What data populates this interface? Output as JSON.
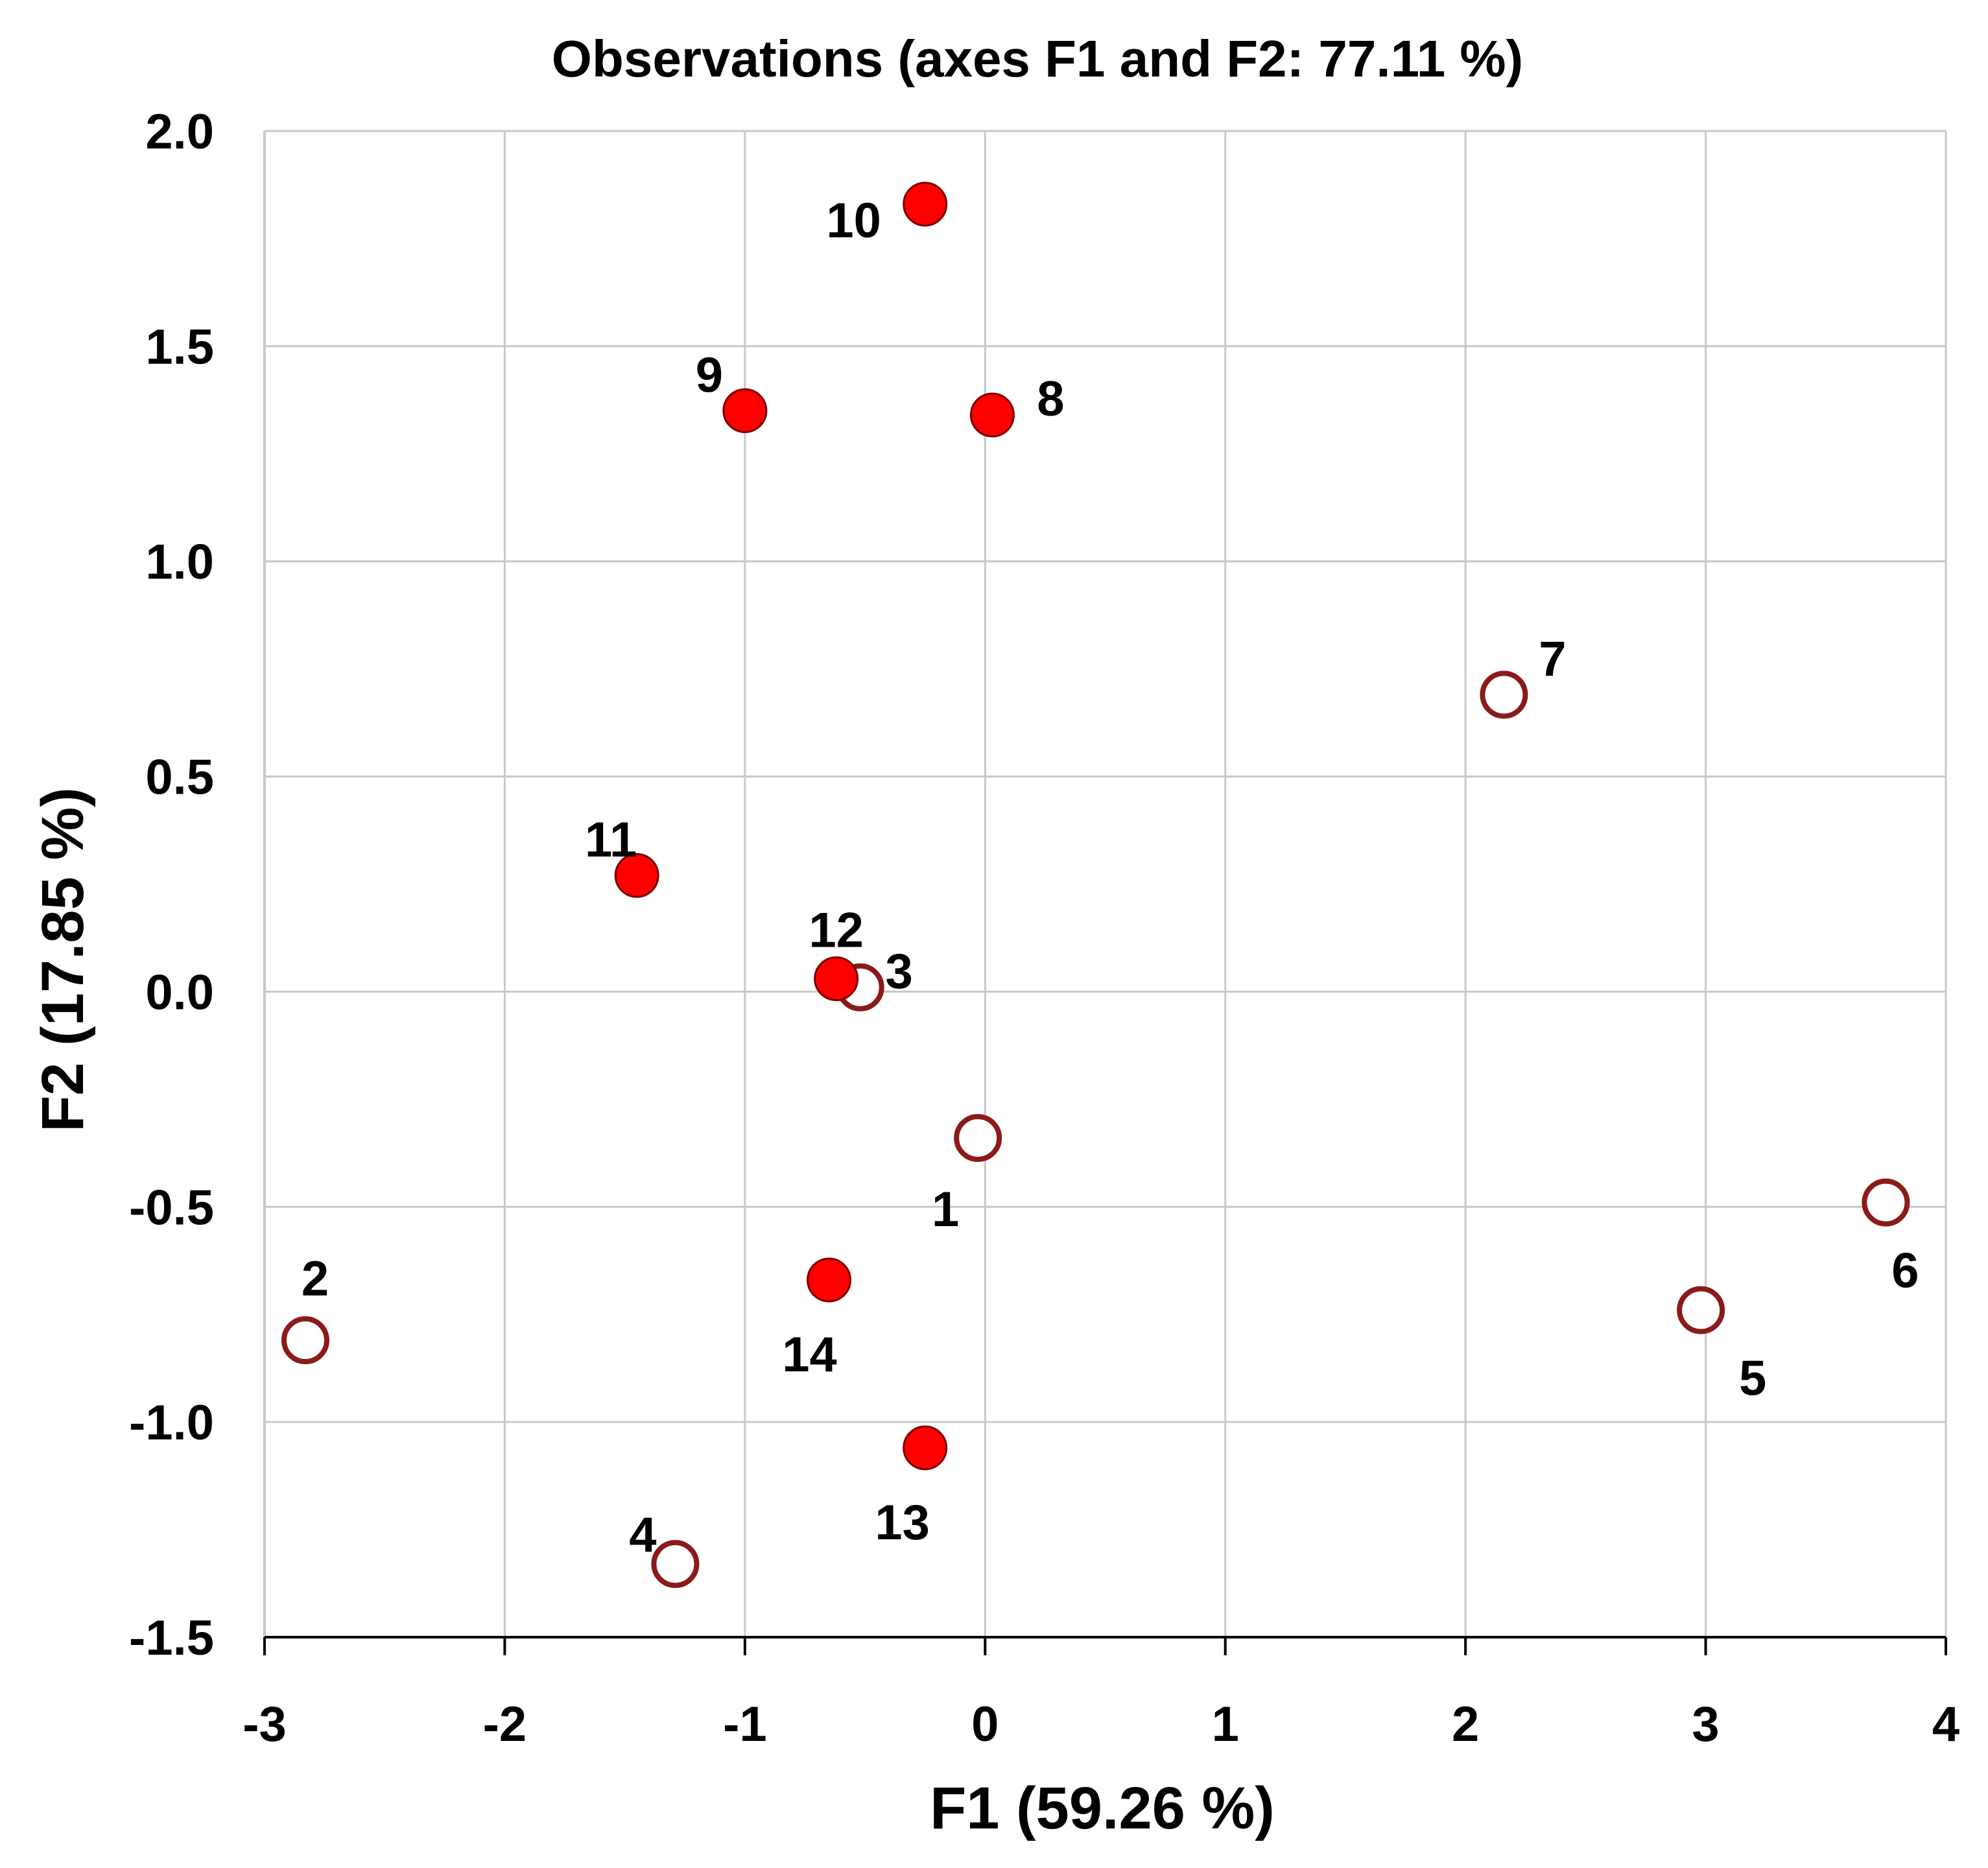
{
  "chart_data": {
    "type": "scatter",
    "title": "Observations (axes F1 and F2: 77.11 %)",
    "xlabel": "F1 (59.26 %)",
    "ylabel": "F2 (17.85 %)",
    "xlim": [
      -3,
      4
    ],
    "ylim": [
      -1.5,
      2.0
    ],
    "xticks": [
      "-3",
      "-2",
      "-1",
      "0",
      "1",
      "2",
      "3",
      "4"
    ],
    "yticks": [
      "-1.5",
      "-1.0",
      "-0.5",
      "0.0",
      "0.5",
      "1.0",
      "1.5",
      "2.0"
    ],
    "grid": true,
    "colors": {
      "filled": "#ff0000",
      "outline": "#8b1a1a",
      "grid": "#c8c8c8"
    },
    "series": [
      {
        "marker": "open-circle",
        "points": [
          {
            "label": "1",
            "x": -0.03,
            "y": -0.34
          },
          {
            "label": "2",
            "x": -2.83,
            "y": -0.81
          },
          {
            "label": "3",
            "x": -0.52,
            "y": 0.01
          },
          {
            "label": "4",
            "x": -1.29,
            "y": -1.33
          },
          {
            "label": "5",
            "x": 2.98,
            "y": -0.74
          },
          {
            "label": "6",
            "x": 3.75,
            "y": -0.49
          },
          {
            "label": "7",
            "x": 2.16,
            "y": 0.69
          }
        ]
      },
      {
        "marker": "filled-circle",
        "points": [
          {
            "label": "8",
            "x": 0.03,
            "y": 1.34
          },
          {
            "label": "9",
            "x": -1.0,
            "y": 1.35
          },
          {
            "label": "10",
            "x": -0.25,
            "y": 1.83
          },
          {
            "label": "11",
            "x": -1.45,
            "y": 0.27
          },
          {
            "label": "12",
            "x": -0.62,
            "y": 0.03
          },
          {
            "label": "13",
            "x": -0.25,
            "y": -1.06
          },
          {
            "label": "14",
            "x": -0.65,
            "y": -0.67
          }
        ]
      }
    ]
  }
}
